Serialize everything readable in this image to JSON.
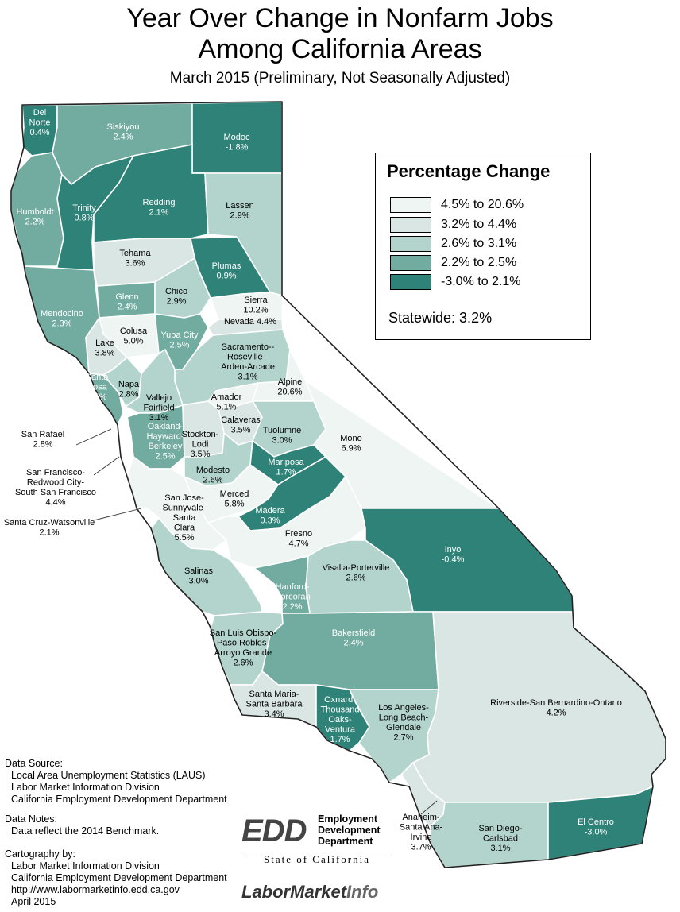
{
  "title_line1": "Year Over Change in Nonfarm Jobs",
  "title_line2": "Among California Areas",
  "subtitle": "March 2015 (Preliminary, Not Seasonally Adjusted)",
  "legend": {
    "title": "Percentage Change",
    "classes": [
      {
        "label": "4.5% to 20.6%",
        "color": "#eef5f3"
      },
      {
        "label": "3.2% to 4.4%",
        "color": "#dae6e3"
      },
      {
        "label": "2.6% to 3.1%",
        "color": "#b3d4cd"
      },
      {
        "label": "2.2% to 2.5%",
        "color": "#72aba0"
      },
      {
        "label": "-3.0% to 2.1%",
        "color": "#2e8277"
      }
    ],
    "statewide": "Statewide: 3.2%"
  },
  "areas": [
    {
      "lines": [
        "Del",
        "Norte",
        "0.4%"
      ],
      "class": 4
    },
    {
      "lines": [
        "Siskiyou",
        "2.4%"
      ],
      "class": 3
    },
    {
      "lines": [
        "Modoc",
        "-1.8%"
      ],
      "class": 4
    },
    {
      "lines": [
        "Humboldt",
        "2.2%"
      ],
      "class": 3
    },
    {
      "lines": [
        "Trinity",
        "0.8%"
      ],
      "class": 4
    },
    {
      "lines": [
        "Redding",
        "2.1%"
      ],
      "class": 4
    },
    {
      "lines": [
        "Lassen",
        "2.9%"
      ],
      "class": 2
    },
    {
      "lines": [
        "Tehama",
        "3.6%"
      ],
      "class": 1
    },
    {
      "lines": [
        "Plumas",
        "0.9%"
      ],
      "class": 4
    },
    {
      "lines": [
        "Glenn",
        "2.4%"
      ],
      "class": 3
    },
    {
      "lines": [
        "Chico",
        "2.9%"
      ],
      "class": 2
    },
    {
      "lines": [
        "Sierra",
        "10.2%"
      ],
      "class": 0
    },
    {
      "lines": [
        "Mendocino",
        "2.3%"
      ],
      "class": 3
    },
    {
      "lines": [
        "Colusa",
        "5.0%"
      ],
      "class": 0
    },
    {
      "lines": [
        "Yuba City",
        "2.5%"
      ],
      "class": 3
    },
    {
      "lines": [
        "Nevada 4.4%"
      ],
      "class": 1
    },
    {
      "lines": [
        "Lake",
        "3.8%"
      ],
      "class": 1
    },
    {
      "lines": [
        "Sacramento--",
        "Roseville--",
        "Arden-Arcade",
        "3.1%"
      ],
      "class": 2
    },
    {
      "lines": [
        "Santa",
        "Rosa",
        "2.5%"
      ],
      "class": 3
    },
    {
      "lines": [
        "Napa",
        "2.8%"
      ],
      "class": 2
    },
    {
      "lines": [
        "Vallejo",
        "Fairfield",
        "3.1%"
      ],
      "class": 2
    },
    {
      "lines": [
        "Amador",
        "5.1%"
      ],
      "class": 0
    },
    {
      "lines": [
        "Alpine",
        "20.6%"
      ],
      "class": 0
    },
    {
      "lines": [
        "Calaveras",
        "3.5%"
      ],
      "class": 1
    },
    {
      "lines": [
        "Tuolumne",
        "3.0%"
      ],
      "class": 2
    },
    {
      "lines": [
        "Mono",
        "6.9%"
      ],
      "class": 0
    },
    {
      "lines": [
        "Oakland-",
        "Hayward-",
        "Berkeley",
        "2.5%"
      ],
      "class": 3
    },
    {
      "lines": [
        "Stockton-",
        "Lodi",
        "3.5%"
      ],
      "class": 1
    },
    {
      "lines": [
        "Modesto",
        "2.6%"
      ],
      "class": 2
    },
    {
      "lines": [
        "Mariposa",
        "1.7%"
      ],
      "class": 4
    },
    {
      "lines": [
        "Merced",
        "5.8%"
      ],
      "class": 0
    },
    {
      "lines": [
        "Madera",
        "0.3%"
      ],
      "class": 4
    },
    {
      "lines": [
        "San Jose-",
        "Sunnyvale-",
        "Santa",
        "Clara",
        "5.5%"
      ],
      "class": 0
    },
    {
      "lines": [
        "Fresno",
        "4.7%"
      ],
      "class": 0
    },
    {
      "lines": [
        "Inyo",
        "-0.4%"
      ],
      "class": 4
    },
    {
      "lines": [
        "Salinas",
        "3.0%"
      ],
      "class": 2
    },
    {
      "lines": [
        "Visalia-Porterville",
        "2.6%"
      ],
      "class": 2
    },
    {
      "lines": [
        "Hanford-",
        "Corcoran",
        "2.2%"
      ],
      "class": 3
    },
    {
      "lines": [
        "San Luis Obispo-",
        "Paso Robles-",
        "Arroyo Grande",
        "2.6%"
      ],
      "class": 2
    },
    {
      "lines": [
        "Bakersfield",
        "2.4%"
      ],
      "class": 3
    },
    {
      "lines": [
        "Santa Maria-",
        "Santa Barbara",
        "3.4%"
      ],
      "class": 1
    },
    {
      "lines": [
        "Oxnard-",
        "Thousand",
        "Oaks-",
        "Ventura",
        "1.7%"
      ],
      "class": 4
    },
    {
      "lines": [
        "Los Angeles-",
        "Long Beach-",
        "Glendale",
        "2.7%"
      ],
      "class": 2
    },
    {
      "lines": [
        "Riverside-San Bernardino-Ontario",
        "4.2%"
      ],
      "class": 1
    },
    {
      "lines": [
        "Anaheim-",
        "Santa Ana-",
        "Irvine",
        "3.7%"
      ],
      "class": 1
    },
    {
      "lines": [
        "San Diego-",
        "Carlsbad",
        "3.1%"
      ],
      "class": 2
    },
    {
      "lines": [
        "El Centro",
        "-3.0%"
      ],
      "class": 4
    },
    {
      "lines": [
        "San Rafael",
        "2.8%"
      ],
      "class": 2
    },
    {
      "lines": [
        "San Francisco-",
        "Redwood City-",
        "South San Francisco",
        "4.4%"
      ],
      "class": 1
    },
    {
      "lines": [
        "Santa Cruz-Watsonville",
        "2.1%"
      ],
      "class": 4
    }
  ],
  "data_source": {
    "heading": "Data Source:",
    "lines": [
      "Local Area Unemployment Statistics (LAUS)",
      "Labor Market Information Division",
      "California Employment Development Department"
    ]
  },
  "data_notes": {
    "heading": "Data Notes:",
    "lines": [
      "Data reflect the 2014 Benchmark."
    ]
  },
  "cartography": {
    "heading": "Cartography by:",
    "lines": [
      "Labor Market Information Division",
      "California Employment Development Department",
      "http://www.labormarketinfo.edd.ca.gov",
      "April 2015"
    ]
  },
  "edd_logo": {
    "mark": "EDD",
    "line1": "Employment",
    "line2": "Development",
    "line3": "Department",
    "state": "State of California"
  },
  "lmi_logo": {
    "part1": "LaborMarket",
    "part2": "Info"
  }
}
